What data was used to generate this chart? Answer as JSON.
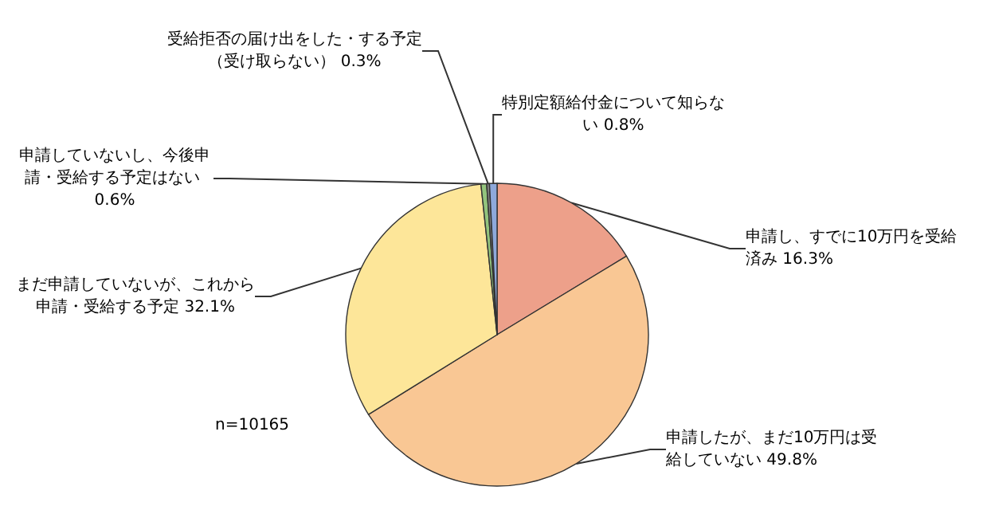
{
  "chart_data": {
    "type": "pie",
    "categories": [
      "申請し、すでに10万円を受給済み",
      "申請したが、まだ10万円は受給していない",
      "まだ申請していないが、これから申請・受給する予定",
      "申請していないし、今後申請・受給する予定はない",
      "受給拒否の届け出をした・する予定（受け取らない）",
      "特別定額給付金について知らない"
    ],
    "values": [
      16.3,
      49.8,
      32.1,
      0.6,
      0.3,
      0.8
    ],
    "colors": [
      "#eda08a",
      "#f9c794",
      "#fde699",
      "#93c47d",
      "#7f7f7f",
      "#8ea9db"
    ],
    "value_labels": [
      "16.3%",
      "49.8%",
      "32.1%",
      "0.6%",
      "0.3%",
      "0.8%"
    ],
    "annotations": [
      "n=10165"
    ]
  }
}
